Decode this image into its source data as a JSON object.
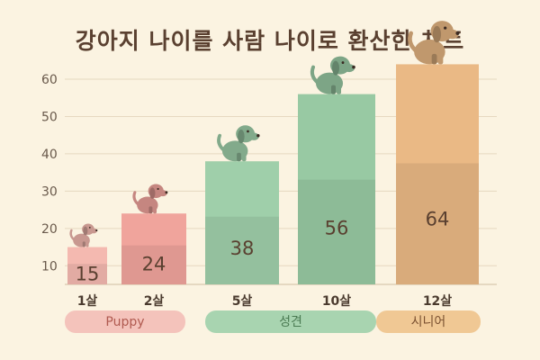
{
  "title": "강아지 나이를 사람 나이로 환산한 차트",
  "colors": {
    "background": "#fbf3e1",
    "puppy": "#f0a8a0",
    "adult": "#9ccaa6",
    "senior": "#e8b880",
    "text": "#5a4030"
  },
  "chart_data": {
    "type": "bar",
    "title": "강아지 나이를 사람 나이로 환산한 차트",
    "categories": [
      "1살",
      "2살",
      "5살",
      "10살",
      "12살"
    ],
    "values": [
      15,
      24,
      38,
      56,
      64
    ],
    "data_labels": [
      "15",
      "24",
      "38",
      "56",
      "64"
    ],
    "ylim": [
      5,
      60
    ],
    "yticks": [
      10,
      20,
      30,
      40,
      50,
      60
    ],
    "grid": true,
    "bar_colors": [
      "#f4b9b0",
      "#f0a49c",
      "#9fcfaa",
      "#98c9a3",
      "#eab985"
    ],
    "bar_icons": [
      "puppy-icon",
      "puppy-icon",
      "dog-icon",
      "dog-icon",
      "senior-dog-icon"
    ],
    "stages": [
      {
        "label": "Puppy",
        "categories": [
          "1살",
          "2살"
        ],
        "color": "#f4c3bb",
        "text_color": "#b05a50"
      },
      {
        "label": "성견",
        "categories": [
          "5살",
          "10살"
        ],
        "color": "#a8d4b0",
        "text_color": "#4a7a52"
      },
      {
        "label": "시니어",
        "categories": [
          "12살"
        ],
        "color": "#f0c894",
        "text_color": "#7a5030"
      }
    ]
  }
}
